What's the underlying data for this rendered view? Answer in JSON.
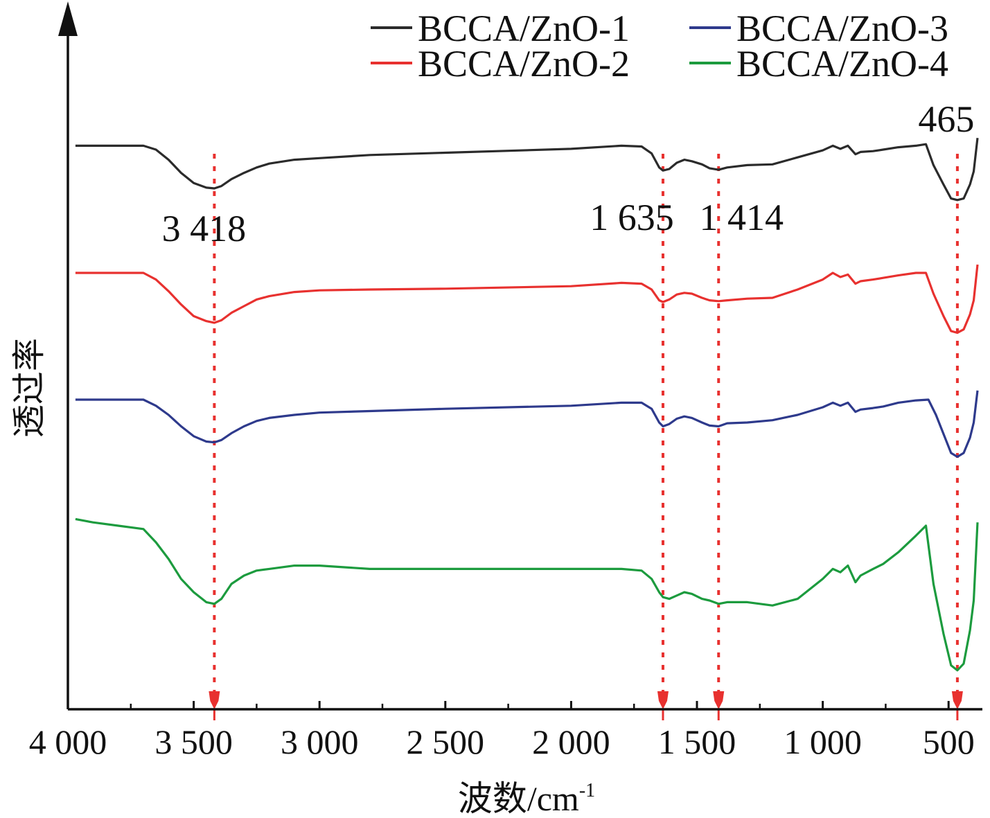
{
  "chart_data": {
    "type": "line",
    "xlabel": "波数/cm",
    "xlabel_superscript": "-1",
    "ylabel": "透过率",
    "xlim": [
      4000,
      360
    ],
    "x_reversed": true,
    "y_ticks_labeled": false,
    "grid": false,
    "legend_position": "top-right",
    "x_ticks": [
      {
        "value": 4000,
        "label": "4 000"
      },
      {
        "value": 3500,
        "label": "3 500"
      },
      {
        "value": 3000,
        "label": "3 000"
      },
      {
        "value": 2500,
        "label": "2 500"
      },
      {
        "value": 2000,
        "label": "2 000"
      },
      {
        "value": 1500,
        "label": "1 500"
      },
      {
        "value": 1000,
        "label": "1 000"
      },
      {
        "value": 500,
        "label": "500"
      }
    ],
    "annotations": [
      {
        "value": 3418,
        "label": "3 418",
        "label_row": 1
      },
      {
        "value": 1635,
        "label": "1 635",
        "label_row": 1
      },
      {
        "value": 1414,
        "label": "1 414",
        "label_row": 1
      },
      {
        "value": 465,
        "label": "465",
        "label_row": 0
      }
    ],
    "annotation_color": "#e8312f",
    "series": [
      {
        "name": "BCCA/ZnO-1",
        "color": "#2b2b2b",
        "points": [
          [
            3970,
            0.8
          ],
          [
            3800,
            0.8
          ],
          [
            3700,
            0.8
          ],
          [
            3650,
            0.75
          ],
          [
            3600,
            0.62
          ],
          [
            3550,
            0.45
          ],
          [
            3500,
            0.32
          ],
          [
            3450,
            0.26
          ],
          [
            3418,
            0.25
          ],
          [
            3390,
            0.28
          ],
          [
            3350,
            0.37
          ],
          [
            3300,
            0.45
          ],
          [
            3250,
            0.52
          ],
          [
            3200,
            0.57
          ],
          [
            3100,
            0.62
          ],
          [
            3000,
            0.64
          ],
          [
            2800,
            0.68
          ],
          [
            2500,
            0.71
          ],
          [
            2000,
            0.76
          ],
          [
            1800,
            0.8
          ],
          [
            1720,
            0.79
          ],
          [
            1680,
            0.7
          ],
          [
            1650,
            0.52
          ],
          [
            1635,
            0.48
          ],
          [
            1610,
            0.5
          ],
          [
            1580,
            0.58
          ],
          [
            1550,
            0.62
          ],
          [
            1520,
            0.6
          ],
          [
            1480,
            0.56
          ],
          [
            1450,
            0.51
          ],
          [
            1414,
            0.49
          ],
          [
            1380,
            0.52
          ],
          [
            1300,
            0.55
          ],
          [
            1200,
            0.56
          ],
          [
            1100,
            0.65
          ],
          [
            1000,
            0.74
          ],
          [
            960,
            0.8
          ],
          [
            930,
            0.76
          ],
          [
            900,
            0.8
          ],
          [
            870,
            0.69
          ],
          [
            850,
            0.72
          ],
          [
            800,
            0.73
          ],
          [
            760,
            0.75
          ],
          [
            700,
            0.78
          ],
          [
            630,
            0.8
          ],
          [
            590,
            0.82
          ],
          [
            560,
            0.55
          ],
          [
            520,
            0.3
          ],
          [
            490,
            0.12
          ],
          [
            465,
            0.1
          ],
          [
            440,
            0.12
          ],
          [
            415,
            0.3
          ],
          [
            400,
            0.47
          ],
          [
            385,
            0.9
          ]
        ]
      },
      {
        "name": "BCCA/ZnO-2",
        "color": "#e8312f",
        "points": [
          [
            3970,
            0.8
          ],
          [
            3800,
            0.8
          ],
          [
            3700,
            0.8
          ],
          [
            3650,
            0.72
          ],
          [
            3600,
            0.58
          ],
          [
            3550,
            0.42
          ],
          [
            3500,
            0.28
          ],
          [
            3450,
            0.22
          ],
          [
            3418,
            0.2
          ],
          [
            3390,
            0.23
          ],
          [
            3350,
            0.32
          ],
          [
            3300,
            0.4
          ],
          [
            3250,
            0.48
          ],
          [
            3200,
            0.52
          ],
          [
            3100,
            0.57
          ],
          [
            3000,
            0.59
          ],
          [
            2800,
            0.6
          ],
          [
            2500,
            0.61
          ],
          [
            2000,
            0.64
          ],
          [
            1800,
            0.68
          ],
          [
            1720,
            0.67
          ],
          [
            1680,
            0.6
          ],
          [
            1650,
            0.47
          ],
          [
            1635,
            0.45
          ],
          [
            1610,
            0.48
          ],
          [
            1580,
            0.54
          ],
          [
            1550,
            0.56
          ],
          [
            1520,
            0.55
          ],
          [
            1480,
            0.5
          ],
          [
            1450,
            0.47
          ],
          [
            1414,
            0.46
          ],
          [
            1380,
            0.47
          ],
          [
            1300,
            0.49
          ],
          [
            1200,
            0.5
          ],
          [
            1100,
            0.6
          ],
          [
            1000,
            0.72
          ],
          [
            960,
            0.8
          ],
          [
            930,
            0.75
          ],
          [
            900,
            0.78
          ],
          [
            870,
            0.67
          ],
          [
            850,
            0.7
          ],
          [
            800,
            0.72
          ],
          [
            760,
            0.74
          ],
          [
            700,
            0.77
          ],
          [
            630,
            0.8
          ],
          [
            590,
            0.8
          ],
          [
            560,
            0.55
          ],
          [
            520,
            0.28
          ],
          [
            490,
            0.1
          ],
          [
            465,
            0.08
          ],
          [
            440,
            0.12
          ],
          [
            415,
            0.3
          ],
          [
            400,
            0.47
          ],
          [
            385,
            0.9
          ]
        ]
      },
      {
        "name": "BCCA/ZnO-3",
        "color": "#2e3a8c",
        "points": [
          [
            3970,
            0.8
          ],
          [
            3800,
            0.8
          ],
          [
            3700,
            0.8
          ],
          [
            3650,
            0.72
          ],
          [
            3600,
            0.6
          ],
          [
            3550,
            0.45
          ],
          [
            3500,
            0.32
          ],
          [
            3450,
            0.25
          ],
          [
            3418,
            0.24
          ],
          [
            3390,
            0.27
          ],
          [
            3350,
            0.36
          ],
          [
            3300,
            0.45
          ],
          [
            3250,
            0.52
          ],
          [
            3200,
            0.56
          ],
          [
            3100,
            0.6
          ],
          [
            3000,
            0.63
          ],
          [
            2800,
            0.65
          ],
          [
            2500,
            0.68
          ],
          [
            2000,
            0.72
          ],
          [
            1800,
            0.76
          ],
          [
            1720,
            0.76
          ],
          [
            1680,
            0.68
          ],
          [
            1650,
            0.5
          ],
          [
            1635,
            0.45
          ],
          [
            1610,
            0.48
          ],
          [
            1580,
            0.55
          ],
          [
            1550,
            0.58
          ],
          [
            1520,
            0.56
          ],
          [
            1480,
            0.5
          ],
          [
            1450,
            0.46
          ],
          [
            1414,
            0.45
          ],
          [
            1380,
            0.49
          ],
          [
            1300,
            0.5
          ],
          [
            1200,
            0.53
          ],
          [
            1100,
            0.6
          ],
          [
            1000,
            0.7
          ],
          [
            960,
            0.76
          ],
          [
            930,
            0.72
          ],
          [
            900,
            0.76
          ],
          [
            870,
            0.64
          ],
          [
            850,
            0.67
          ],
          [
            800,
            0.69
          ],
          [
            760,
            0.71
          ],
          [
            700,
            0.76
          ],
          [
            630,
            0.79
          ],
          [
            580,
            0.8
          ],
          [
            550,
            0.6
          ],
          [
            520,
            0.35
          ],
          [
            490,
            0.1
          ],
          [
            465,
            0.05
          ],
          [
            440,
            0.1
          ],
          [
            415,
            0.3
          ],
          [
            400,
            0.5
          ],
          [
            385,
            0.92
          ]
        ]
      },
      {
        "name": "BCCA/ZnO-4",
        "color": "#1c9b3e",
        "points": [
          [
            3970,
            0.94
          ],
          [
            3900,
            0.92
          ],
          [
            3800,
            0.9
          ],
          [
            3700,
            0.88
          ],
          [
            3650,
            0.8
          ],
          [
            3600,
            0.7
          ],
          [
            3550,
            0.58
          ],
          [
            3500,
            0.5
          ],
          [
            3450,
            0.44
          ],
          [
            3418,
            0.43
          ],
          [
            3390,
            0.46
          ],
          [
            3350,
            0.55
          ],
          [
            3300,
            0.6
          ],
          [
            3250,
            0.63
          ],
          [
            3200,
            0.64
          ],
          [
            3100,
            0.66
          ],
          [
            3000,
            0.66
          ],
          [
            2800,
            0.64
          ],
          [
            2500,
            0.64
          ],
          [
            2000,
            0.64
          ],
          [
            1800,
            0.64
          ],
          [
            1720,
            0.63
          ],
          [
            1680,
            0.58
          ],
          [
            1650,
            0.5
          ],
          [
            1635,
            0.47
          ],
          [
            1610,
            0.46
          ],
          [
            1580,
            0.48
          ],
          [
            1550,
            0.5
          ],
          [
            1520,
            0.49
          ],
          [
            1480,
            0.46
          ],
          [
            1450,
            0.45
          ],
          [
            1414,
            0.43
          ],
          [
            1380,
            0.44
          ],
          [
            1300,
            0.44
          ],
          [
            1200,
            0.42
          ],
          [
            1100,
            0.46
          ],
          [
            1000,
            0.58
          ],
          [
            960,
            0.64
          ],
          [
            930,
            0.62
          ],
          [
            900,
            0.66
          ],
          [
            870,
            0.56
          ],
          [
            850,
            0.6
          ],
          [
            800,
            0.64
          ],
          [
            760,
            0.67
          ],
          [
            700,
            0.74
          ],
          [
            630,
            0.84
          ],
          [
            590,
            0.9
          ],
          [
            560,
            0.55
          ],
          [
            520,
            0.25
          ],
          [
            490,
            0.06
          ],
          [
            465,
            0.03
          ],
          [
            440,
            0.07
          ],
          [
            415,
            0.27
          ],
          [
            400,
            0.45
          ],
          [
            385,
            0.92
          ]
        ]
      }
    ]
  }
}
